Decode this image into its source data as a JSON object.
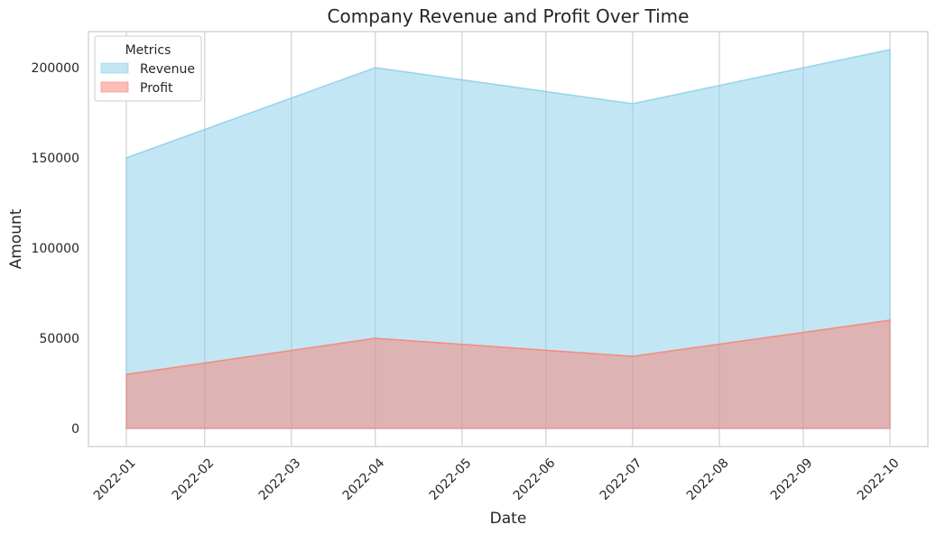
{
  "chart_data": {
    "type": "area",
    "title": "Company Revenue and Profit Over Time",
    "xlabel": "Date",
    "ylabel": "Amount",
    "categories": [
      "2022-01",
      "2022-02",
      "2022-03",
      "2022-04",
      "2022-05",
      "2022-06",
      "2022-07",
      "2022-08",
      "2022-09",
      "2022-10"
    ],
    "x_dates": [
      "2022-01-31",
      "2022-02-28",
      "2022-03-31",
      "2022-04-30",
      "2022-05-31",
      "2022-06-30",
      "2022-07-31",
      "2022-08-31",
      "2022-09-30",
      "2022-10-31"
    ],
    "series": [
      {
        "name": "Revenue",
        "points": [
          {
            "x": "2022-01-31",
            "y": 150000
          },
          {
            "x": "2022-04-30",
            "y": 200000
          },
          {
            "x": "2022-07-31",
            "y": 180000
          },
          {
            "x": "2022-10-31",
            "y": 210000
          }
        ],
        "color": "#87CEEB"
      },
      {
        "name": "Profit",
        "points": [
          {
            "x": "2022-01-31",
            "y": 30000
          },
          {
            "x": "2022-04-30",
            "y": 50000
          },
          {
            "x": "2022-07-31",
            "y": 40000
          },
          {
            "x": "2022-10-31",
            "y": 60000
          }
        ],
        "color": "#FA8072"
      }
    ],
    "yticks": [
      0,
      50000,
      100000,
      150000,
      200000
    ],
    "ylim": [
      -10000,
      220000
    ],
    "grid": true,
    "legend": {
      "title": "Metrics",
      "position": "top-left"
    }
  }
}
